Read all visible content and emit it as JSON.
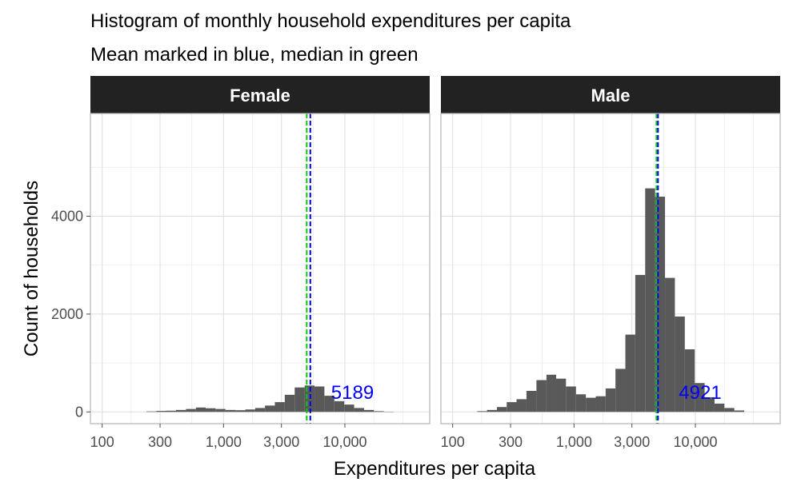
{
  "chart_data": {
    "type": "bar",
    "title": "Histogram of monthly household expenditures per capita",
    "subtitle": "Mean marked in blue, median in green",
    "xlabel": "Expenditures per capita",
    "ylabel": "Count of households",
    "x_scale": "log10",
    "xlim": [
      80,
      50000
    ],
    "ylim": [
      -240,
      6100
    ],
    "x_ticks": [
      100,
      300,
      1000,
      3000,
      10000
    ],
    "x_tick_labels": [
      "100",
      "300",
      "1,000",
      "3,000",
      "10,000"
    ],
    "y_ticks": [
      0,
      2000,
      4000
    ],
    "y_tick_labels": [
      "0",
      "2000",
      "4000"
    ],
    "bar_color": "#595959",
    "mean_color": "#0000ff",
    "median_color": "#00cc00",
    "grid": true,
    "bins_x": [
      120,
      145,
      175,
      210,
      255,
      305,
      370,
      445,
      540,
      650,
      780,
      945,
      1140,
      1375,
      1660,
      2000,
      2410,
      2910,
      3510,
      4240,
      5120,
      6170,
      7450,
      8990,
      10850,
      13100,
      15800,
      19060,
      23000
    ],
    "panels": [
      {
        "label": "Female",
        "values": [
          0,
          0,
          0,
          0,
          10,
          20,
          25,
          40,
          60,
          90,
          75,
          60,
          40,
          35,
          50,
          80,
          130,
          200,
          350,
          500,
          540,
          520,
          330,
          220,
          150,
          80,
          40,
          15,
          5
        ],
        "mean": 5189,
        "median": 4850,
        "mean_label": "5189"
      },
      {
        "label": "Male",
        "values": [
          0,
          0,
          15,
          40,
          100,
          200,
          260,
          430,
          650,
          760,
          680,
          520,
          360,
          290,
          320,
          480,
          880,
          1580,
          2800,
          4570,
          4400,
          2740,
          1950,
          1280,
          590,
          300,
          170,
          80,
          30
        ],
        "mean": 4921,
        "median": 4780,
        "mean_label": "4921"
      }
    ]
  }
}
